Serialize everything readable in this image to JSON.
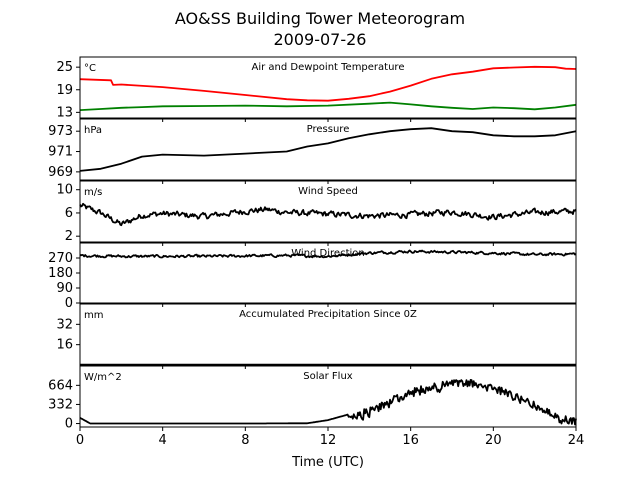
{
  "figure": {
    "title_line1": "AO&SS Building Tower Meteorogram",
    "title_line2": "2009-07-26",
    "xlabel": "Time (UTC)",
    "x_ticks": [
      0,
      4,
      8,
      12,
      16,
      20,
      24
    ],
    "x_range": [
      0,
      24
    ]
  },
  "chart_data": [
    {
      "type": "line",
      "title": "Air and Dewpoint Temperature",
      "unit_label": "°C",
      "ylim": [
        11.5,
        27.7
      ],
      "y_ticks": [
        13,
        19,
        25
      ],
      "series": [
        {
          "color": "#ff0000",
          "x": [
            0,
            1.5,
            1.6,
            2,
            4,
            6,
            8,
            10,
            11,
            12,
            13,
            14,
            15,
            16,
            17,
            18,
            19,
            20,
            21,
            22,
            23,
            23.5,
            24
          ],
          "y": [
            21.8,
            21.5,
            20.3,
            20.4,
            19.7,
            18.7,
            17.6,
            16.5,
            16.2,
            16.1,
            16.6,
            17.3,
            18.5,
            20.1,
            21.9,
            23.1,
            23.8,
            24.7,
            24.9,
            25.1,
            25.0,
            24.6,
            24.5
          ]
        },
        {
          "color": "#008000",
          "x": [
            0,
            1,
            2,
            3,
            4,
            6,
            8,
            10,
            12,
            14,
            15,
            16,
            17,
            18,
            19,
            20,
            21,
            22,
            23,
            24
          ],
          "y": [
            13.6,
            13.9,
            14.2,
            14.4,
            14.6,
            14.7,
            14.8,
            14.6,
            14.8,
            15.3,
            15.6,
            15.1,
            14.6,
            14.2,
            13.9,
            14.3,
            14.1,
            13.8,
            14.3,
            15.0
          ]
        }
      ]
    },
    {
      "type": "line",
      "title": "Pressure",
      "unit_label": "hPa",
      "ylim": [
        968.2,
        974.2
      ],
      "y_ticks": [
        969,
        971,
        973
      ],
      "series": [
        {
          "color": "#000000",
          "x": [
            0,
            1,
            2,
            3,
            4,
            6,
            8,
            10,
            11,
            12,
            13,
            14,
            15,
            16,
            17,
            18,
            19,
            20,
            21,
            22,
            23,
            24
          ],
          "y": [
            969.1,
            969.3,
            969.8,
            970.5,
            970.7,
            970.6,
            970.8,
            971.0,
            971.5,
            971.8,
            972.3,
            972.7,
            973.0,
            973.2,
            973.3,
            973.0,
            972.9,
            972.6,
            972.5,
            972.5,
            972.6,
            973.0
          ]
        }
      ]
    },
    {
      "type": "line",
      "title": "Wind Speed",
      "unit_label": "m/s",
      "ylim": [
        1.0,
        11.5
      ],
      "y_ticks": [
        2,
        6,
        10
      ],
      "series": [
        {
          "color": "#000000",
          "base": [
            [
              0,
              7.3
            ],
            [
              1,
              6.0
            ],
            [
              2,
              4.0
            ],
            [
              3,
              5.6
            ],
            [
              4,
              5.9
            ],
            [
              6,
              5.4
            ],
            [
              8,
              6.3
            ],
            [
              9,
              6.6
            ],
            [
              10,
              6.1
            ],
            [
              12,
              5.8
            ],
            [
              14,
              5.5
            ],
            [
              16,
              5.7
            ],
            [
              18,
              6.2
            ],
            [
              20,
              5.3
            ],
            [
              22,
              6.1
            ],
            [
              24,
              6.3
            ]
          ],
          "noise_amplitude": 1.6
        }
      ]
    },
    {
      "type": "line",
      "title": "Wind Direction",
      "unit_label": "",
      "ylim": [
        0,
        360
      ],
      "y_ticks": [
        0,
        90,
        180,
        270
      ],
      "series": [
        {
          "color": "#000000",
          "base": [
            [
              0,
              285
            ],
            [
              2,
              280
            ],
            [
              6,
              280
            ],
            [
              10,
              285
            ],
            [
              12,
              280
            ],
            [
              14,
              300
            ],
            [
              16,
              310
            ],
            [
              18,
              305
            ],
            [
              20,
              300
            ],
            [
              22,
              290
            ],
            [
              24,
              295
            ]
          ],
          "noise_amplitude": 25
        }
      ]
    },
    {
      "type": "line",
      "title": "Accumulated Precipitation Since 0Z",
      "unit_label": "mm",
      "ylim": [
        0,
        48
      ],
      "y_ticks": [
        16,
        32
      ],
      "series": [
        {
          "color": "#000000",
          "x": [
            0,
            24
          ],
          "y": [
            0,
            0
          ]
        }
      ]
    },
    {
      "type": "line",
      "title": "Solar Flux",
      "unit_label": "W/m^2",
      "ylim": [
        -60,
        1000
      ],
      "y_ticks": [
        0,
        332,
        664
      ],
      "series": [
        {
          "color": "#000000",
          "base": [
            [
              0,
              100
            ],
            [
              0.5,
              0
            ],
            [
              4,
              0
            ],
            [
              8,
              0
            ],
            [
              11,
              5
            ],
            [
              12,
              60
            ],
            [
              13,
              160
            ],
            [
              14,
              300
            ],
            [
              15,
              450
            ],
            [
              16,
              600
            ],
            [
              17,
              700
            ],
            [
              18,
              760
            ],
            [
              19,
              760
            ],
            [
              20,
              680
            ],
            [
              21,
              540
            ],
            [
              22,
              380
            ],
            [
              23,
              180
            ],
            [
              24,
              90
            ]
          ],
          "noise_amplitude": 380,
          "noise_start": 13
        }
      ]
    }
  ]
}
